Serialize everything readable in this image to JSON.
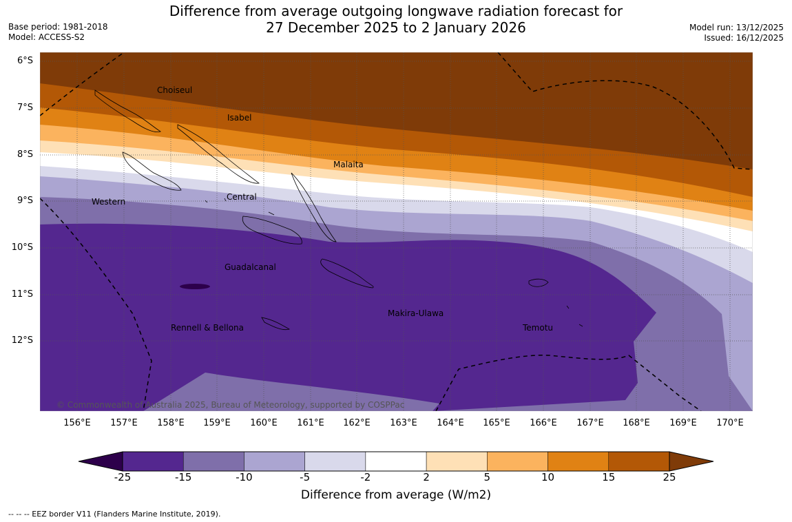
{
  "title": {
    "line1": "Difference from average outgoing longwave radiation forecast for",
    "line2": "27 December 2025 to 2 January 2026"
  },
  "meta_left": {
    "base_period": "Base period: 1981-2018",
    "model": "Model: ACCESS-S2"
  },
  "meta_right": {
    "model_run": "Model run: 13/12/2025",
    "issued": "Issued: 16/12/2025"
  },
  "lat_labels": [
    "6°S",
    "7°S",
    "8°S",
    "9°S",
    "10°S",
    "11°S",
    "12°S"
  ],
  "lon_labels": [
    "156°E",
    "157°E",
    "158°E",
    "159°E",
    "160°E",
    "161°E",
    "162°E",
    "163°E",
    "164°E",
    "165°E",
    "166°E",
    "167°E",
    "168°E",
    "169°E",
    "170°E"
  ],
  "regions": [
    "Choiseul",
    "Isabel",
    "Malaita",
    "Western",
    "Central",
    "Guadalcanal",
    "Makira-Ulawa",
    "Rennell & Bellona",
    "Temotu"
  ],
  "copyright": "© Commonwealth of Australia 2025, Bureau of Meteorology, supported by COSPPac",
  "colorbar": {
    "labels": [
      "-25",
      "-15",
      "-10",
      "-5",
      "-2",
      "2",
      "5",
      "10",
      "15",
      "25"
    ],
    "colors": [
      "#54278f",
      "#7f6faa",
      "#aba5d1",
      "#d9d9eb",
      "#ffffff",
      "#fee0b6",
      "#fbb35e",
      "#e08214",
      "#b35806"
    ],
    "under_color": "#2d004b",
    "over_color": "#7f3b08",
    "title": "Difference from average (W/m2)"
  },
  "footnote": "-- -- -- EEZ border V11 (Flanders Marine Institute, 2019)."
}
